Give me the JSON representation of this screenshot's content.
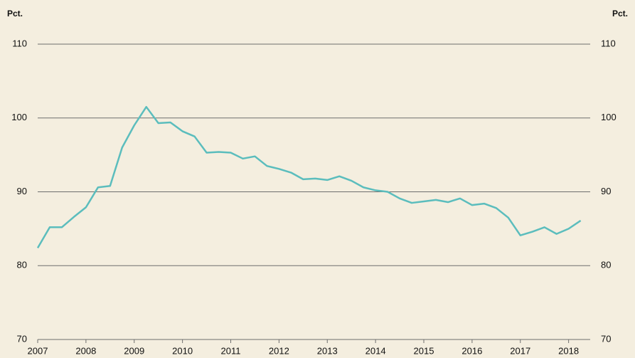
{
  "chart_data": {
    "type": "line",
    "y_label": "Pct.",
    "y2_label": "Pct.",
    "x": [
      2007,
      2007.25,
      2007.5,
      2007.75,
      2008,
      2008.25,
      2008.5,
      2008.75,
      2009,
      2009.25,
      2009.5,
      2009.75,
      2010,
      2010.25,
      2010.5,
      2010.75,
      2011,
      2011.25,
      2011.5,
      2011.75,
      2012,
      2012.25,
      2012.5,
      2012.75,
      2013,
      2013.25,
      2013.5,
      2013.75,
      2014,
      2014.25,
      2014.5,
      2014.75,
      2015,
      2015.25,
      2015.5,
      2015.75,
      2016,
      2016.25,
      2016.5,
      2016.75,
      2017,
      2017.25,
      2017.5,
      2017.75,
      2018,
      2018.25
    ],
    "series": [
      {
        "color": "#5bbdbd",
        "values": [
          82.4,
          85.2,
          85.2,
          86.6,
          87.9,
          90.6,
          90.8,
          96.0,
          99.0,
          101.5,
          99.3,
          99.4,
          98.2,
          97.5,
          95.3,
          95.4,
          95.3,
          94.5,
          94.8,
          93.5,
          93.1,
          92.6,
          91.7,
          91.8,
          91.6,
          92.1,
          91.5,
          90.6,
          90.2,
          90.0,
          89.1,
          88.5,
          88.7,
          88.9,
          88.6,
          89.1,
          88.2,
          88.4,
          87.8,
          86.5,
          84.1,
          84.6,
          85.2,
          84.3,
          85.0,
          86.1
        ]
      }
    ],
    "xlim": [
      2007,
      2018.3
    ],
    "xticks": [
      2007,
      2008,
      2009,
      2010,
      2011,
      2012,
      2013,
      2014,
      2015,
      2016,
      2017,
      2018
    ],
    "ylim": [
      70,
      110
    ],
    "yticks": [
      70,
      80,
      90,
      100,
      110
    ],
    "y2lim": [
      70,
      110
    ],
    "y2ticks": [
      70,
      80,
      90,
      100,
      110
    ],
    "grid": true
  }
}
